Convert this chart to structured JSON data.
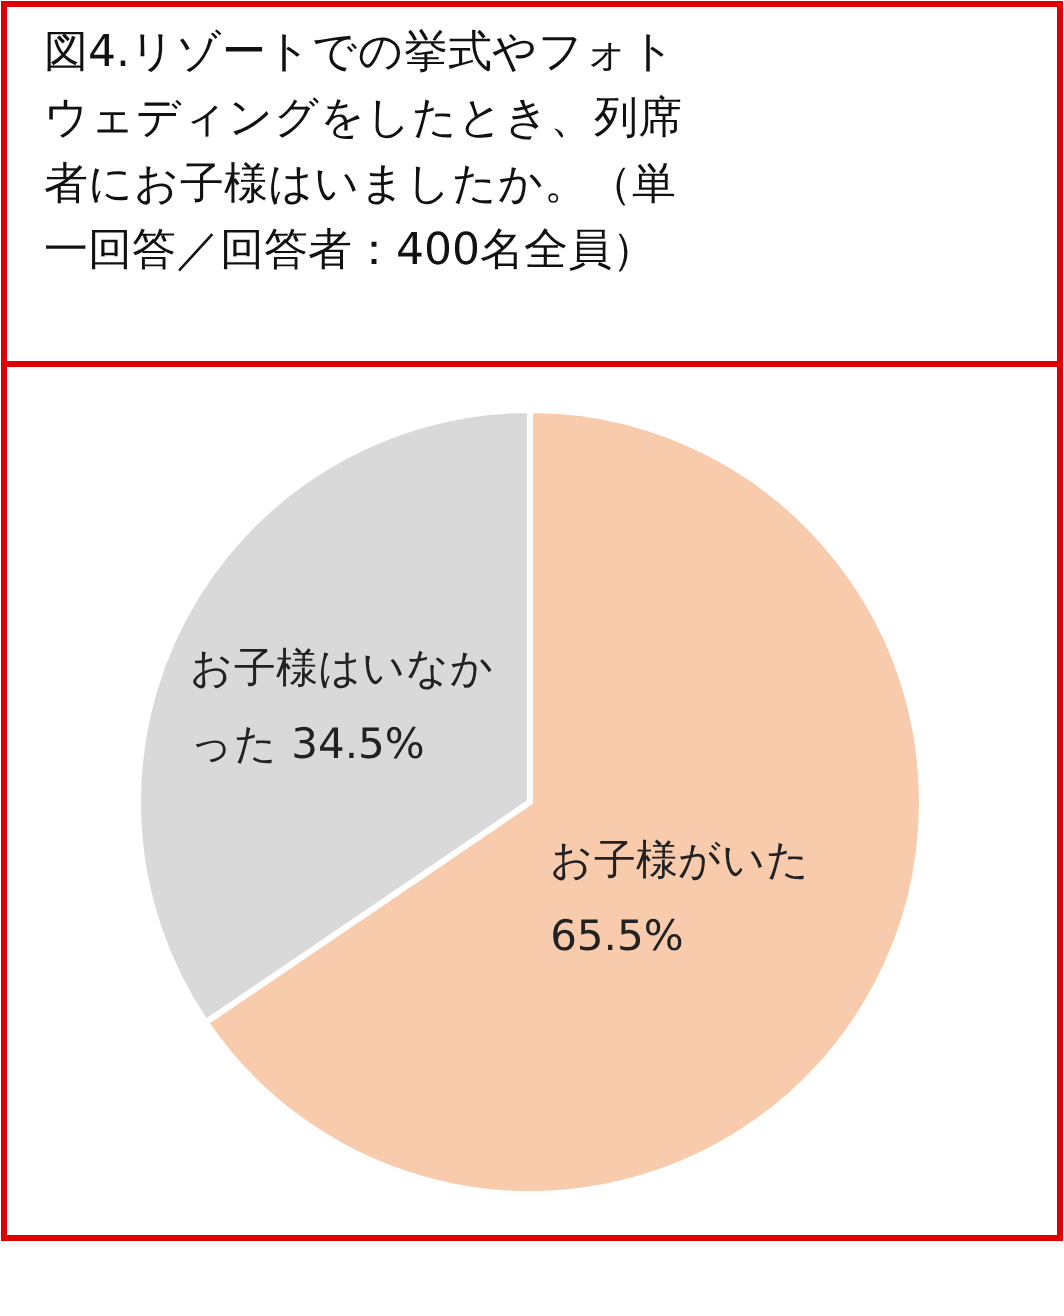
{
  "chart_data": {
    "type": "pie",
    "title": "図4.リゾートでの挙式やフォトウェディングをしたとき、列席者にお子様はいましたか。（単一回答／回答者：400名全員）",
    "categories": [
      "お子様がいた",
      "お子様はいなかった"
    ],
    "values": [
      65.5,
      34.5
    ],
    "colors": [
      "#f8cbad",
      "#d9d9d9"
    ],
    "value_labels": [
      "65.5%",
      "34.5%"
    ]
  }
}
